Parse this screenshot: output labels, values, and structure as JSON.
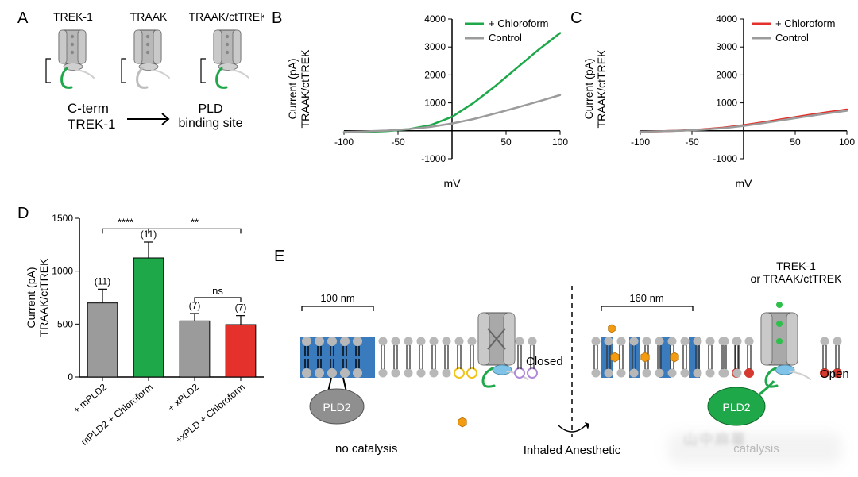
{
  "panelA": {
    "label": "A",
    "channels": [
      {
        "name": "TREK-1",
        "tail_color": "#1fa84a"
      },
      {
        "name": "TRAAK",
        "tail_color": "#bdbdbd"
      },
      {
        "name": "TRAAK/ctTREK",
        "tail_color": "#1fa84a"
      }
    ],
    "bottom_left": "C-term\nTREK-1",
    "arrow_to": "PLD\nbinding site"
  },
  "panelB": {
    "label": "B",
    "type": "line",
    "xlabel": "mV",
    "ylabel": "Current (pA)\nTRAAK/ctTREK",
    "xlim": [
      -100,
      100
    ],
    "ylim": [
      -1000,
      4000
    ],
    "xtick_step": 50,
    "ytick_step": 1000,
    "label_fontsize": 14,
    "tick_fontsize": 12,
    "background": "#ffffff",
    "axis_color": "#000000",
    "series": [
      {
        "name": "+ Chloroform",
        "color": "#1fa84a",
        "width": 2.5,
        "data": [
          [
            -100,
            -60
          ],
          [
            -80,
            -40
          ],
          [
            -60,
            -10
          ],
          [
            -40,
            60
          ],
          [
            -20,
            200
          ],
          [
            0,
            500
          ],
          [
            20,
            1000
          ],
          [
            40,
            1600
          ],
          [
            60,
            2250
          ],
          [
            80,
            2900
          ],
          [
            100,
            3500
          ]
        ]
      },
      {
        "name": "Control",
        "color": "#9b9b9b",
        "width": 2.5,
        "data": [
          [
            -100,
            -40
          ],
          [
            -80,
            -20
          ],
          [
            -60,
            10
          ],
          [
            -40,
            60
          ],
          [
            -20,
            140
          ],
          [
            0,
            260
          ],
          [
            20,
            420
          ],
          [
            40,
            620
          ],
          [
            60,
            830
          ],
          [
            80,
            1050
          ],
          [
            100,
            1280
          ]
        ]
      }
    ],
    "legend_pos": "top-right",
    "legend_fontsize": 13
  },
  "panelC": {
    "label": "C",
    "type": "line",
    "xlabel": "mV",
    "ylabel": "Current (pA)\nTRAAK/ctTREK",
    "xlim": [
      -100,
      100
    ],
    "ylim": [
      -1000,
      4000
    ],
    "xtick_step": 50,
    "ytick_step": 1000,
    "label_fontsize": 14,
    "tick_fontsize": 12,
    "background": "#ffffff",
    "axis_color": "#000000",
    "series": [
      {
        "name": "+ Chloroform",
        "color": "#e4312b",
        "width": 2.5,
        "data": [
          [
            -100,
            -30
          ],
          [
            -80,
            -15
          ],
          [
            -60,
            10
          ],
          [
            -40,
            50
          ],
          [
            -20,
            110
          ],
          [
            0,
            200
          ],
          [
            20,
            310
          ],
          [
            40,
            430
          ],
          [
            60,
            550
          ],
          [
            80,
            660
          ],
          [
            100,
            760
          ]
        ]
      },
      {
        "name": "Control",
        "color": "#9b9b9b",
        "width": 2.5,
        "data": [
          [
            -100,
            -30
          ],
          [
            -80,
            -15
          ],
          [
            -60,
            5
          ],
          [
            -40,
            40
          ],
          [
            -20,
            95
          ],
          [
            0,
            175
          ],
          [
            20,
            280
          ],
          [
            40,
            395
          ],
          [
            60,
            510
          ],
          [
            80,
            620
          ],
          [
            100,
            720
          ]
        ]
      }
    ],
    "legend_pos": "top-right",
    "legend_fontsize": 13
  },
  "panelD": {
    "label": "D",
    "type": "bar",
    "ylabel": "Current (pA)\nTRAAK/ctTREK",
    "ylim": [
      0,
      1500
    ],
    "ytick_step": 500,
    "label_fontsize": 14,
    "tick_fontsize": 12,
    "background": "#ffffff",
    "axis_color": "#000000",
    "bar_width": 0.65,
    "bars": [
      {
        "label": "+ mPLD2",
        "value": 700,
        "err": 130,
        "n": "(11)",
        "color": "#9b9b9b"
      },
      {
        "label": "mPLD2 + Chloroform",
        "value": 1125,
        "err": 150,
        "n": "(11)",
        "color": "#1fa84a"
      },
      {
        "label": "+ xPLD2",
        "value": 530,
        "err": 70,
        "n": "(7)",
        "color": "#9b9b9b"
      },
      {
        "label": "+xPLD + Chloroform",
        "value": 495,
        "err": 85,
        "n": "(7)",
        "color": "#e4312b"
      }
    ],
    "sig": [
      {
        "pair": [
          0,
          1
        ],
        "label": "****",
        "y": 1400
      },
      {
        "pair": [
          1,
          3
        ],
        "label": "**",
        "y": 1400
      },
      {
        "pair": [
          2,
          3
        ],
        "label": "ns",
        "y": 750
      }
    ],
    "xlabel_fontsize": 12,
    "xlabel_rotation": -40
  },
  "panelE": {
    "label": "E",
    "left": {
      "scale_nm": "100 nm",
      "pld_label": "PLD2",
      "pld_color": "#8f8f8f",
      "state_label": "Closed",
      "caption": "no catalysis"
    },
    "center_label": "Inhaled Anesthetic",
    "right": {
      "scale_nm": "160 nm",
      "pld_label": "PLD2",
      "pld_color": "#1fa84a",
      "state_label": "Open",
      "caption": "catalysis",
      "top_label": "TREK-1\nor TRAAK/ctTREK"
    },
    "colors": {
      "raft": "#3a7bbd",
      "lipid_head": "#b8b8b8",
      "anesthetic": "#f39c12",
      "red_lipid": "#d43a2f",
      "yellow_ring": "#f0c419",
      "purple_ring": "#b089d9",
      "channel_body": "#a9a9a9",
      "helper": "#7fc4e8",
      "green_dot": "#2fbf4b"
    }
  },
  "watermark": "山中麻薯"
}
